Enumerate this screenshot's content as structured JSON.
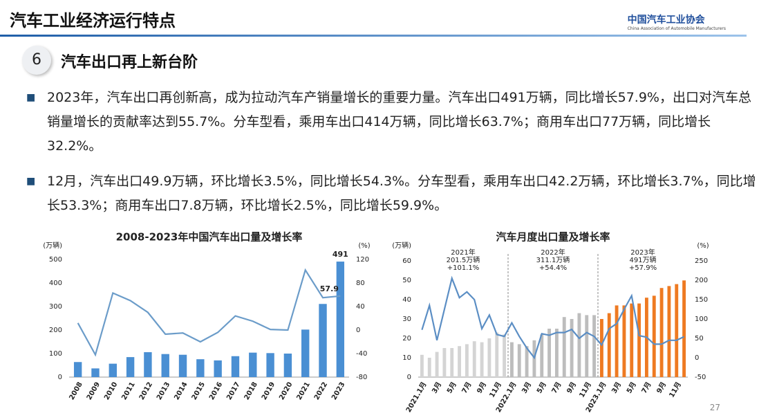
{
  "header": {
    "title": "汽车工业经济运行特点",
    "logo_name": "中国汽车工业协会",
    "logo_subtitle": "China Association of Automobile Manufacturers"
  },
  "section": {
    "number": "6",
    "title": "汽车出口再上新台阶"
  },
  "bullets": [
    "2023年，汽车出口再创新高，成为拉动汽车产销量增长的重要力量。汽车出口491万辆，同比增长57.9%，出口对汽车总销量增长的贡献率达到55.7%。分车型看，乘用车出口414万辆，同比增长63.7%；商用车出口77万辆，同比增长32.2%。",
    "12月，汽车出口49.9万辆，环比增长3.5%，同比增长54.3%。分车型看，乘用车出口42.2万辆，环比增长3.7%，同比增长53.3%；商用车出口7.8万辆，环比增长2.5%，同比增长59.9%。"
  ],
  "page_number": "27",
  "chart_data": [
    {
      "type": "bar",
      "title": "2008-2023年中国汽车出口量及增长率",
      "ylabel": "(万辆)",
      "y2label": "(%)",
      "categories": [
        "2008",
        "2009",
        "2010",
        "2011",
        "2012",
        "2013",
        "2014",
        "2015",
        "2016",
        "2017",
        "2018",
        "2019",
        "2020",
        "2021",
        "2022",
        "2023"
      ],
      "series": [
        {
          "type": "bar",
          "color": "#4a8fd3",
          "values": [
            64,
            37,
            57,
            85,
            106,
            98,
            95,
            76,
            71,
            89,
            104,
            102,
            100,
            202,
            311,
            491
          ],
          "value_labels": [
            null,
            null,
            null,
            null,
            null,
            null,
            null,
            null,
            null,
            null,
            null,
            null,
            null,
            null,
            null,
            "491"
          ]
        },
        {
          "type": "line",
          "axis": "y2",
          "color": "#6b9cc9",
          "values": [
            12,
            -42,
            63,
            50,
            30,
            -7,
            -5,
            -20,
            -4,
            24,
            15,
            1,
            0,
            102,
            55,
            57.9
          ],
          "value_labels": [
            null,
            null,
            null,
            null,
            null,
            null,
            null,
            null,
            null,
            null,
            null,
            null,
            null,
            null,
            null,
            "57.9"
          ]
        }
      ],
      "ylim": [
        0,
        500
      ],
      "yticks": [
        0,
        100,
        200,
        300,
        400,
        500
      ],
      "y2lim": [
        -80,
        120
      ],
      "y2ticks": [
        -80,
        -40,
        0,
        40,
        80,
        120
      ]
    },
    {
      "type": "bar",
      "title": "汽车月度出口量及增长率",
      "ylabel": "(万辆)",
      "y2label": "(%)",
      "categories": [
        "2021.1月",
        null,
        "3月",
        null,
        "5月",
        null,
        "7月",
        null,
        "9月",
        null,
        "11月",
        null,
        "2022.1月",
        null,
        "3月",
        null,
        "5月",
        null,
        "7月",
        null,
        "9月",
        null,
        "11月",
        null,
        "2023.1月",
        null,
        "3月",
        null,
        "5月",
        null,
        "7月",
        null,
        "9月",
        null,
        "11月",
        null
      ],
      "series": [
        {
          "type": "bar",
          "colors": [
            "#d4d4d4",
            "#d4d4d4",
            "#d4d4d4",
            "#d4d4d4",
            "#d4d4d4",
            "#d4d4d4",
            "#d4d4d4",
            "#d4d4d4",
            "#d4d4d4",
            "#d4d4d4",
            "#d4d4d4",
            "#d4d4d4",
            "#bdbdbd",
            "#bdbdbd",
            "#bdbdbd",
            "#bdbdbd",
            "#bdbdbd",
            "#bdbdbd",
            "#bdbdbd",
            "#bdbdbd",
            "#bdbdbd",
            "#bdbdbd",
            "#bdbdbd",
            "#bdbdbd",
            "#ee7a22",
            "#ee7a22",
            "#ee7a22",
            "#ee7a22",
            "#ee7a22",
            "#ee7a22",
            "#ee7a22",
            "#ee7a22",
            "#ee7a22",
            "#ee7a22",
            "#ee7a22",
            "#ee7a22"
          ],
          "values": [
            11.5,
            10,
            13,
            15,
            15,
            16,
            17,
            18.5,
            18,
            20,
            23,
            22,
            18,
            17,
            16,
            19,
            22,
            25,
            25,
            31,
            30,
            33,
            32,
            32,
            30,
            33,
            37,
            37,
            38,
            38,
            41,
            42,
            46,
            47,
            48,
            49.9
          ]
        },
        {
          "type": "line",
          "axis": "y2",
          "color": "#5b8ec4",
          "values": [
            72,
            135,
            45,
            125,
            205,
            155,
            170,
            150,
            75,
            110,
            60,
            55,
            90,
            55,
            25,
            0,
            62,
            58,
            65,
            65,
            73,
            50,
            65,
            55,
            33,
            75,
            88,
            125,
            160,
            57,
            53,
            35,
            35,
            45,
            45,
            54.3
          ]
        }
      ],
      "ylim": [
        0,
        60
      ],
      "yticks": [
        0,
        10,
        20,
        30,
        40,
        50,
        60
      ],
      "y2lim": [
        -50,
        250
      ],
      "y2ticks": [
        -50,
        0,
        50,
        100,
        150,
        200,
        250
      ],
      "annotations": [
        {
          "lines": [
            "2021年",
            "201.5万辆",
            "+101.1%"
          ]
        },
        {
          "lines": [
            "2022年",
            "311.1万辆",
            "+54.4%"
          ]
        },
        {
          "lines": [
            "2023年",
            "491万辆",
            "+57.9%"
          ]
        }
      ]
    }
  ]
}
